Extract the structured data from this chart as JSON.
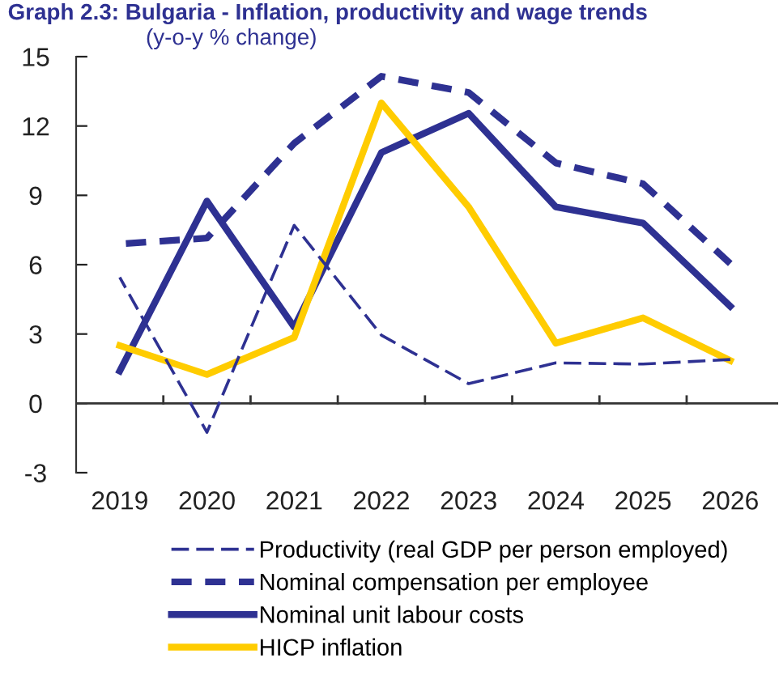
{
  "chart_data": {
    "type": "line",
    "title": "Graph 2.3: Bulgaria - Inflation, productivity and wage trends",
    "subtitle": "(y-o-y % change)",
    "categories": [
      "2019",
      "2020",
      "2021",
      "2022",
      "2023",
      "2024",
      "2025",
      "2026"
    ],
    "series": [
      {
        "name": "Productivity (real GDP per person employed)",
        "color": "#2e3192",
        "line_style": "dashed",
        "values": [
          5.45,
          -1.25,
          7.7,
          2.95,
          0.85,
          1.75,
          1.7,
          1.9
        ]
      },
      {
        "name": "Nominal compensation per employee",
        "color": "#2e3192",
        "line_style": "dashed",
        "values": [
          6.9,
          7.15,
          11.25,
          14.15,
          13.45,
          10.4,
          9.5,
          6.05
        ]
      },
      {
        "name": "Nominal unit labour costs",
        "color": "#2e3192",
        "line_style": "solid",
        "values": [
          1.4,
          8.75,
          3.3,
          10.85,
          12.55,
          8.5,
          7.8,
          4.2
        ]
      },
      {
        "name": "HICP inflation",
        "color": "#ffcc00",
        "line_style": "solid",
        "values": [
          2.5,
          1.25,
          2.85,
          13.0,
          8.5,
          2.6,
          3.7,
          1.85
        ]
      }
    ],
    "ylim": [
      -3,
      15
    ],
    "yticks": [
      -3,
      0,
      3,
      6,
      9,
      12,
      15
    ],
    "legend": "bottom",
    "marker": "none"
  }
}
